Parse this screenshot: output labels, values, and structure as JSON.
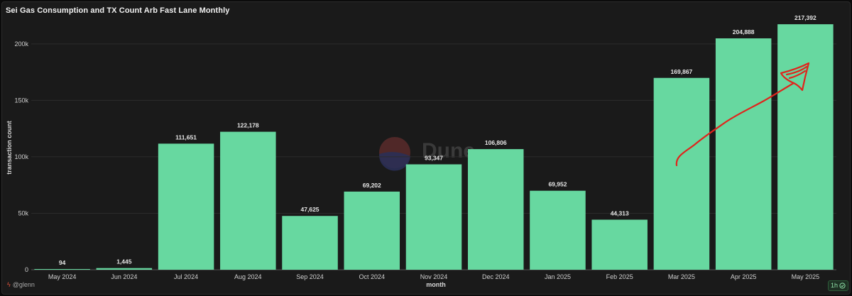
{
  "chart_data": {
    "type": "bar",
    "title": "Sei Gas Consumption and TX Count Arb Fast Lane Monthly",
    "xlabel": "month",
    "ylabel": "transaction count",
    "categories": [
      "May 2024",
      "Jun 2024",
      "Jul 2024",
      "Aug 2024",
      "Sep 2024",
      "Oct 2024",
      "Nov 2024",
      "Dec 2024",
      "Jan 2025",
      "Feb 2025",
      "Mar 2025",
      "Apr 2025",
      "May 2025"
    ],
    "values": [
      94,
      1445,
      111651,
      122178,
      47625,
      69202,
      93347,
      106806,
      69952,
      44313,
      169867,
      204888,
      217392
    ],
    "value_labels": [
      "94",
      "1,445",
      "111,651",
      "122,178",
      "47,625",
      "69,202",
      "93,347",
      "106,806",
      "69,952",
      "44,313",
      "169,867",
      "204,888",
      "217,392"
    ],
    "ylim": [
      0,
      220000
    ],
    "yticks": [
      0,
      50000,
      100000,
      150000,
      200000
    ],
    "ytick_labels": [
      "0",
      "50k",
      "100k",
      "150k",
      "200k"
    ],
    "bar_color": "#67d8a0",
    "grid": true,
    "annotation": "hand-drawn red upward arrow over Mar 2025 – May 2025"
  },
  "watermark": "Dune",
  "footer": {
    "author": "@glenn",
    "refresh": "1h"
  },
  "colors": {
    "background": "#1a1a1a",
    "grid": "#2c2c2c",
    "text": "#cfcfcf",
    "arrow": "#e0241c"
  }
}
